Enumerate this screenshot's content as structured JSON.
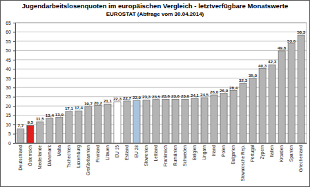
{
  "chart_data": {
    "type": "bar",
    "title": "Jugendarbeitslosenquoten im europäischen Vergleich - letztverfügbare Monatswerte",
    "subtitle": "EUROSTAT (Abfrage vom 30.04.2014)",
    "categories": [
      "Deutschland",
      "Österreich",
      "Niederlande",
      "Dänemark",
      "Malta",
      "Tschechien",
      "Luxemburg",
      "Großbritannien",
      "Finnland",
      "Litauen",
      "EU 15",
      "Estland",
      "EU 28",
      "Slowenien",
      "Lettland",
      "Frankreich",
      "Rumänien",
      "Schweden",
      "Belgien",
      "Ungarn",
      "Irland",
      "Polen",
      "Bulgarien",
      "Slowakische Rep.",
      "Portugal",
      "Zypern",
      "Italien",
      "Kroatien",
      "Spanien",
      "Griechenland"
    ],
    "values": [
      7.7,
      9.5,
      11.5,
      13.4,
      13.9,
      17.1,
      17.4,
      19.7,
      20.2,
      21.1,
      22.3,
      22.7,
      22.9,
      23.3,
      23.5,
      23.6,
      23.6,
      23.6,
      24.1,
      24.5,
      26.0,
      26.9,
      28.4,
      32.3,
      35.0,
      40.3,
      42.3,
      49.8,
      53.6,
      58.3
    ],
    "value_labels": [
      "7,7",
      "9,5",
      "11,5",
      "13,4",
      "13,9",
      "17,1",
      "17,4",
      "19,7",
      "20,2",
      "21,1",
      "22,3",
      "22,7",
      "22,9",
      "23,3",
      "23,5",
      "23,6",
      "23,6",
      "23,6",
      "24,1",
      "24,5",
      "26,0",
      "26,9",
      "28,4",
      "32,3",
      "35,0",
      "40,3",
      "42,3",
      "49,8",
      "53,6",
      "58,3"
    ],
    "colors": [
      "#b4b4b4",
      "#e0201e",
      "#b4b4b4",
      "#b4b4b4",
      "#b4b4b4",
      "#b4b4b4",
      "#b4b4b4",
      "#b4b4b4",
      "#b4b4b4",
      "#b4b4b4",
      "#ffffff",
      "#b4b4b4",
      "#a9c4de",
      "#b4b4b4",
      "#b4b4b4",
      "#b4b4b4",
      "#b4b4b4",
      "#b4b4b4",
      "#b4b4b4",
      "#b4b4b4",
      "#b4b4b4",
      "#b4b4b4",
      "#b4b4b4",
      "#b4b4b4",
      "#b4b4b4",
      "#b4b4b4",
      "#b4b4b4",
      "#b4b4b4",
      "#b4b4b4",
      "#b4b4b4"
    ],
    "ylim": [
      0,
      65
    ],
    "yticks": [
      0,
      5,
      10,
      15,
      20,
      25,
      30,
      35,
      40,
      45,
      50,
      55,
      60,
      65
    ],
    "grid": true,
    "data_labels": true
  }
}
